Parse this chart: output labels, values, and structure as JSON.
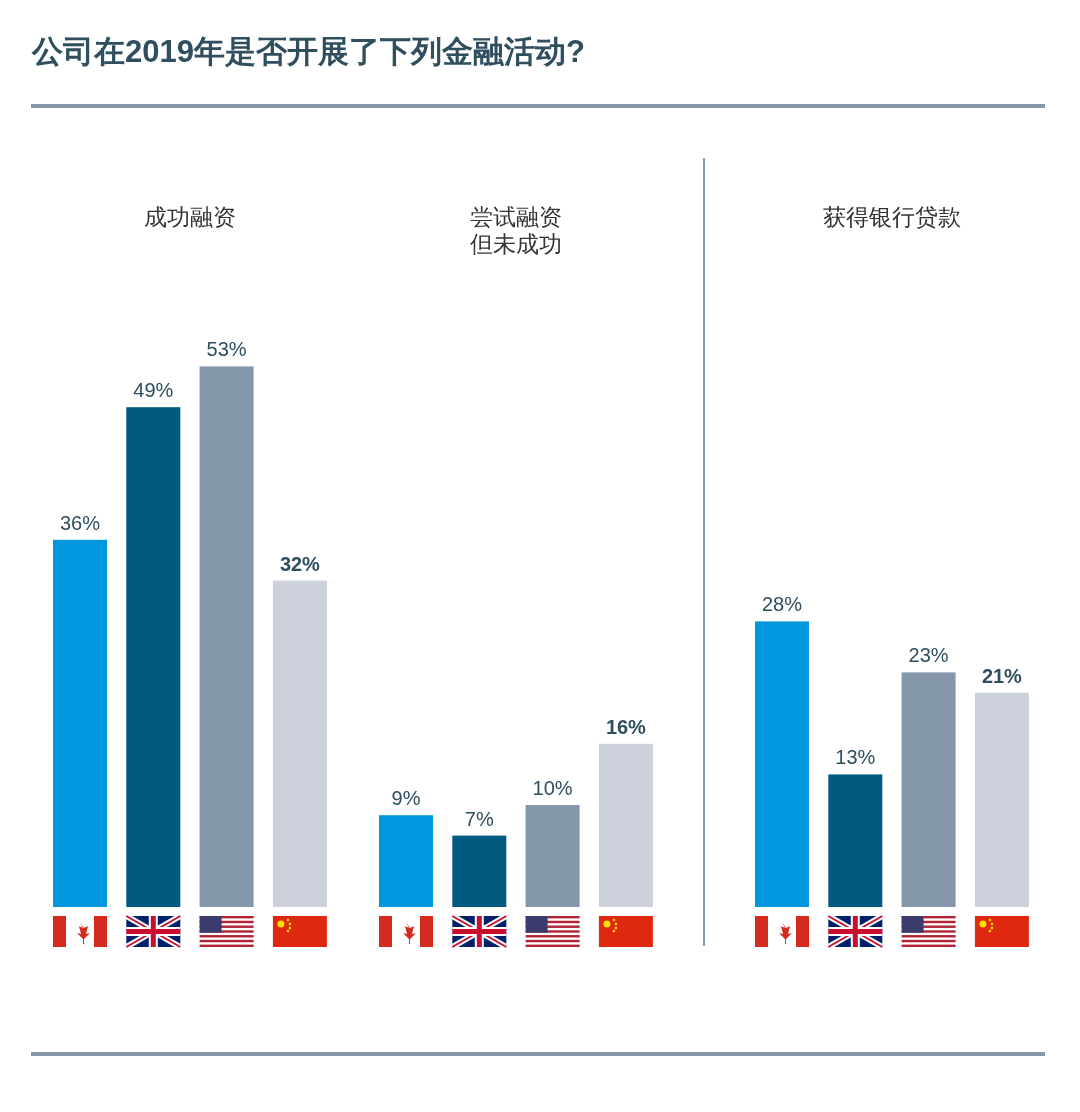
{
  "chart_data": [
    {
      "type": "bar",
      "title": "公司在2019年是否开展了下列金融活动?",
      "subtitle": "成功融资",
      "categories": [
        null,
        null,
        null,
        null
      ],
      "values": [
        36,
        49,
        53,
        32
      ],
      "colors": [
        "#0097df",
        "#005b7f",
        "#8497ab",
        "#ccd1dc"
      ],
      "value_labels": [
        "36%",
        "49%",
        "53%",
        "32%"
      ]
    },
    {
      "type": "bar",
      "subtitle": "尝试融资但未成功",
      "categories": [
        null,
        null,
        null,
        null
      ],
      "values": [
        9,
        7,
        10,
        16
      ],
      "colors": [
        "#0097df",
        "#005b7f",
        "#8497ab",
        "#ccd1dc"
      ],
      "value_labels": [
        "9%",
        "7%",
        "10%",
        "16%"
      ]
    },
    {
      "type": "bar",
      "subtitle": "获得银行贷款",
      "categories": [
        null,
        null,
        null,
        null
      ],
      "values": [
        28,
        13,
        23,
        21
      ],
      "colors": [
        "#0097df",
        "#005b7f",
        "#8497ab",
        "#ccd1dc"
      ],
      "value_labels": [
        "28%",
        "13%",
        "23%",
        "21%"
      ]
    }
  ]
}
